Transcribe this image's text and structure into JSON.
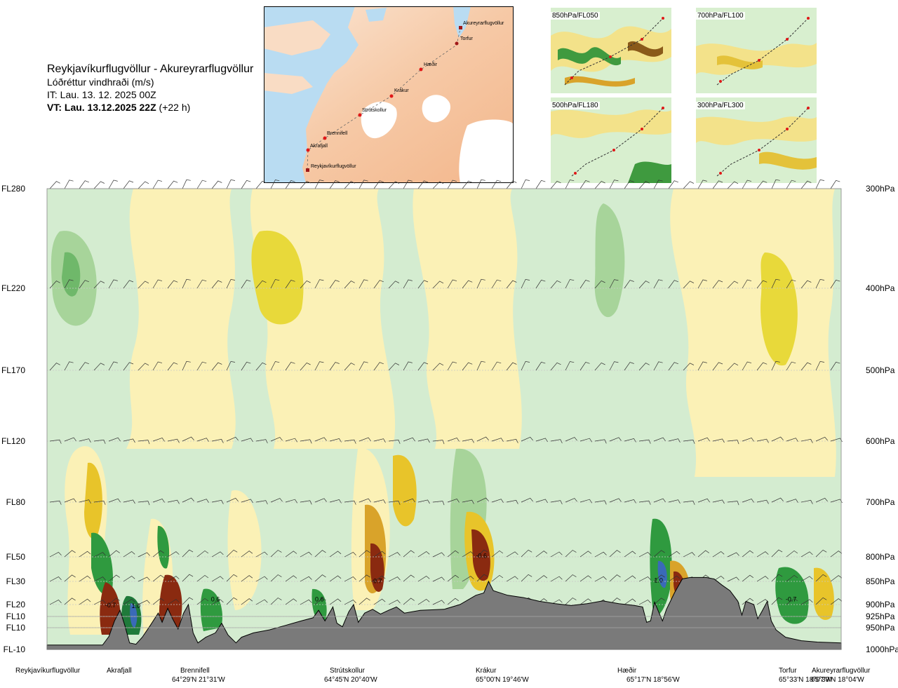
{
  "header": {
    "route": "Reykjavíkurflugvöllur - Akureyrarflugvöllur",
    "variable": "Lóðréttur vindhraði (m/s)",
    "issue_time": "IT: Lau. 13. 12. 2025 00Z",
    "valid_time_bold": "VT: Lau. 13.12.2025 22Z",
    "valid_time_offset": "(+22 h)"
  },
  "route_map": {
    "stations": [
      "Akureyrarflugvöllur",
      "Torfur",
      "Hæðir",
      "Krákur",
      "Strútskollur",
      "Brennifell",
      "Akrafjall",
      "Reykjavíkurflugvöllur"
    ]
  },
  "inset_maps": [
    {
      "label": "850hPa/FL050"
    },
    {
      "label": "700hPa/FL100"
    },
    {
      "label": "500hPa/FL180"
    },
    {
      "label": "300hPa/FL300"
    }
  ],
  "chart_data": {
    "type": "heatmap",
    "title": "Lóðréttur vindhraði (m/s)",
    "levels": [
      {
        "fl": "FL280",
        "hpa": "300hPa"
      },
      {
        "fl": "FL220",
        "hpa": "400hPa"
      },
      {
        "fl": "FL170",
        "hpa": "500hPa"
      },
      {
        "fl": "FL120",
        "hpa": "600hPa"
      },
      {
        "fl": "FL80",
        "hpa": "700hPa"
      },
      {
        "fl": "FL50",
        "hpa": "800hPa"
      },
      {
        "fl": "FL30",
        "hpa": "850hPa"
      },
      {
        "fl": "FL20",
        "hpa": "900hPa"
      },
      {
        "fl": "FL10",
        "hpa": "925hPa"
      },
      {
        "fl": "FL10",
        "hpa": "950hPa"
      },
      {
        "fl": "FL-10",
        "hpa": "1000hPa"
      }
    ],
    "x_stations": [
      {
        "name": "Reykjavíkurflugvöllur",
        "coord": ""
      },
      {
        "name": "Akrafjall",
        "coord": ""
      },
      {
        "name": "Brennifell",
        "coord": "64°29'N 21°31'W"
      },
      {
        "name": "Strútskollur",
        "coord": "64°45'N 20°40'W"
      },
      {
        "name": "Krákur",
        "coord": "65°00'N 19°46'W"
      },
      {
        "name": "Hæðir",
        "coord": "65°17'N 18°56'W"
      },
      {
        "name": "Torfur",
        "coord": "65°33'N 18°07'W"
      },
      {
        "name": "Akureyrarflugvöllur",
        "coord": "65°39'N 18°04'W"
      }
    ],
    "annotations": [
      {
        "text": "-0.7",
        "x": 0.08,
        "p": 906
      },
      {
        "text": "1.0",
        "x": 0.112,
        "p": 907
      },
      {
        "text": "0.6",
        "x": 0.212,
        "p": 893
      },
      {
        "text": "0.6",
        "x": 0.343,
        "p": 893
      },
      {
        "text": "-0.7",
        "x": 0.415,
        "p": 854
      },
      {
        "text": "-0.6",
        "x": 0.547,
        "p": 802
      },
      {
        "text": "1.0",
        "x": 0.77,
        "p": 852
      },
      {
        "text": "-0.7",
        "x": 0.937,
        "p": 893
      }
    ],
    "terrain_pressure_hpa": [
      [
        0.0,
        990
      ],
      [
        0.07,
        990
      ],
      [
        0.078,
        970
      ],
      [
        0.085,
        935
      ],
      [
        0.092,
        912
      ],
      [
        0.098,
        945
      ],
      [
        0.104,
        985
      ],
      [
        0.112,
        988
      ],
      [
        0.12,
        972
      ],
      [
        0.13,
        945
      ],
      [
        0.14,
        918
      ],
      [
        0.145,
        938
      ],
      [
        0.152,
        908
      ],
      [
        0.158,
        930
      ],
      [
        0.165,
        953
      ],
      [
        0.172,
        918
      ],
      [
        0.178,
        900
      ],
      [
        0.184,
        962
      ],
      [
        0.19,
        985
      ],
      [
        0.2,
        972
      ],
      [
        0.212,
        962
      ],
      [
        0.22,
        940
      ],
      [
        0.228,
        967
      ],
      [
        0.238,
        985
      ],
      [
        0.245,
        972
      ],
      [
        0.26,
        962
      ],
      [
        0.28,
        955
      ],
      [
        0.3,
        945
      ],
      [
        0.32,
        935
      ],
      [
        0.335,
        928
      ],
      [
        0.342,
        912
      ],
      [
        0.35,
        935
      ],
      [
        0.36,
        905
      ],
      [
        0.365,
        940
      ],
      [
        0.372,
        948
      ],
      [
        0.38,
        915
      ],
      [
        0.386,
        900
      ],
      [
        0.392,
        938
      ],
      [
        0.4,
        918
      ],
      [
        0.41,
        910
      ],
      [
        0.42,
        920
      ],
      [
        0.43,
        912
      ],
      [
        0.44,
        905
      ],
      [
        0.45,
        918
      ],
      [
        0.47,
        912
      ],
      [
        0.5,
        910
      ],
      [
        0.52,
        900
      ],
      [
        0.54,
        880
      ],
      [
        0.55,
        875
      ],
      [
        0.556,
        850
      ],
      [
        0.562,
        870
      ],
      [
        0.58,
        880
      ],
      [
        0.6,
        885
      ],
      [
        0.62,
        893
      ],
      [
        0.64,
        898
      ],
      [
        0.66,
        902
      ],
      [
        0.68,
        898
      ],
      [
        0.7,
        892
      ],
      [
        0.72,
        898
      ],
      [
        0.74,
        902
      ],
      [
        0.75,
        905
      ],
      [
        0.755,
        938
      ],
      [
        0.76,
        935
      ],
      [
        0.765,
        895
      ],
      [
        0.775,
        935
      ],
      [
        0.78,
        910
      ],
      [
        0.79,
        875
      ],
      [
        0.8,
        845
      ],
      [
        0.81,
        842
      ],
      [
        0.83,
        842
      ],
      [
        0.84,
        845
      ],
      [
        0.85,
        858
      ],
      [
        0.86,
        870
      ],
      [
        0.87,
        893
      ],
      [
        0.875,
        922
      ],
      [
        0.88,
        893
      ],
      [
        0.89,
        900
      ],
      [
        0.895,
        930
      ],
      [
        0.9,
        915
      ],
      [
        0.907,
        893
      ],
      [
        0.912,
        935
      ],
      [
        0.918,
        955
      ],
      [
        0.93,
        972
      ],
      [
        0.95,
        980
      ],
      [
        0.97,
        983
      ],
      [
        1.0,
        985
      ]
    ]
  }
}
